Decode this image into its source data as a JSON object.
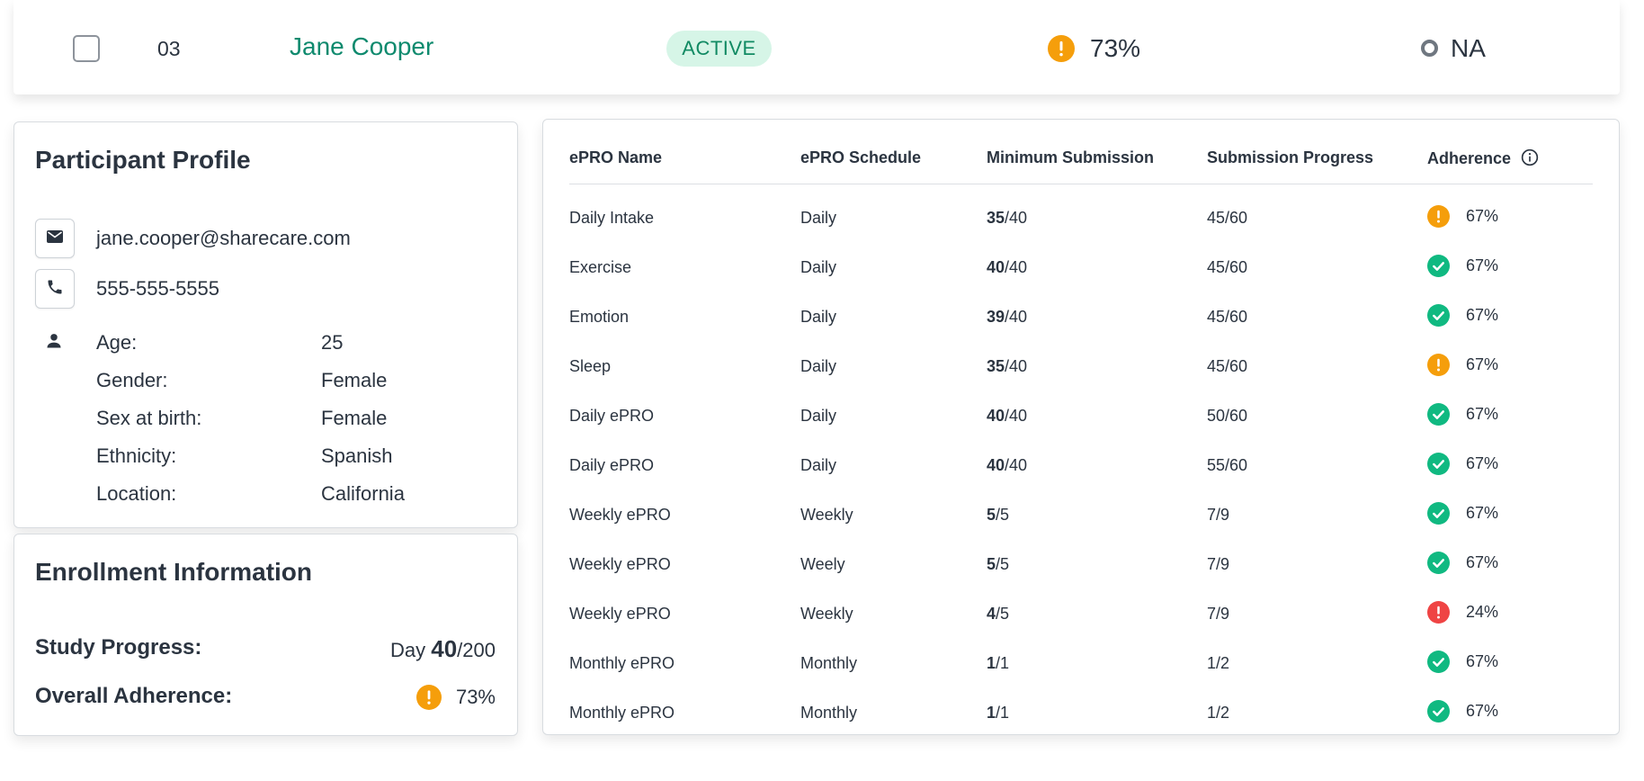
{
  "participant_row": {
    "id": "03",
    "name": "Jane Cooper",
    "status": "ACTIVE",
    "adherence": "73%",
    "adherence_status": "warning",
    "last_column": "NA"
  },
  "profile": {
    "title": "Participant Profile",
    "email": "jane.cooper@sharecare.com",
    "phone": "555-555-5555",
    "fields": [
      {
        "label": "Age:",
        "value": "25"
      },
      {
        "label": "Gender:",
        "value": "Female"
      },
      {
        "label": "Sex at birth:",
        "value": "Female"
      },
      {
        "label": "Ethnicity:",
        "value": "Spanish"
      },
      {
        "label": "Location:",
        "value": "California"
      }
    ]
  },
  "enrollment": {
    "title": "Enrollment Information",
    "study_progress_label": "Study Progress:",
    "day_prefix": "Day",
    "day_current": "40",
    "day_total": "/200",
    "overall_adherence_label": "Overall Adherence:",
    "overall_adherence": "73%",
    "overall_adherence_status": "warning"
  },
  "epro_table": {
    "headers": [
      "ePRO Name",
      "ePRO Schedule",
      "Minimum Submission",
      "Submission Progress",
      "Adherence"
    ],
    "rows": [
      {
        "name": "Daily Intake",
        "schedule": "Daily",
        "min_done": "35",
        "min_total": "/40",
        "progress": "45/60",
        "adherence": "67%",
        "status": "warning"
      },
      {
        "name": "Exercise",
        "schedule": "Daily",
        "min_done": "40",
        "min_total": "/40",
        "progress": "45/60",
        "adherence": "67%",
        "status": "ok"
      },
      {
        "name": "Emotion",
        "schedule": "Daily",
        "min_done": "39",
        "min_total": "/40",
        "progress": "45/60",
        "adherence": "67%",
        "status": "ok"
      },
      {
        "name": "Sleep",
        "schedule": "Daily",
        "min_done": "35",
        "min_total": "/40",
        "progress": "45/60",
        "adherence": "67%",
        "status": "warning"
      },
      {
        "name": "Daily ePRO",
        "schedule": "Daily",
        "min_done": "40",
        "min_total": "/40",
        "progress": "50/60",
        "adherence": "67%",
        "status": "ok"
      },
      {
        "name": "Daily ePRO",
        "schedule": "Daily",
        "min_done": "40",
        "min_total": "/40",
        "progress": "55/60",
        "adherence": "67%",
        "status": "ok"
      },
      {
        "name": "Weekly ePRO",
        "schedule": "Weekly",
        "min_done": "5",
        "min_total": "/5",
        "progress": "7/9",
        "adherence": "67%",
        "status": "ok"
      },
      {
        "name": "Weekly ePRO",
        "schedule": "Weely",
        "min_done": "5",
        "min_total": "/5",
        "progress": "7/9",
        "adherence": "67%",
        "status": "ok"
      },
      {
        "name": "Weekly ePRO",
        "schedule": "Weekly",
        "min_done": "4",
        "min_total": "/5",
        "progress": "7/9",
        "adherence": "24%",
        "status": "error"
      },
      {
        "name": "Monthly ePRO",
        "schedule": "Monthly",
        "min_done": "1",
        "min_total": "/1",
        "progress": "1/2",
        "adherence": "67%",
        "status": "ok"
      },
      {
        "name": "Monthly ePRO",
        "schedule": "Monthly",
        "min_done": "1",
        "min_total": "/1",
        "progress": "1/2",
        "adherence": "67%",
        "status": "ok"
      }
    ]
  },
  "colors": {
    "accent_green": "#0f8a6e",
    "badge_bg": "#d6f5e7",
    "warning": "#f59e0b",
    "ok": "#10b981",
    "error": "#ef4444"
  },
  "icons": {
    "email": "envelope-icon",
    "phone": "phone-icon",
    "person": "person-icon",
    "info": "info-circle-icon",
    "warning": "exclamation-circle-icon",
    "ok": "check-circle-icon",
    "error": "exclamation-circle-icon",
    "na": "ring-icon"
  }
}
